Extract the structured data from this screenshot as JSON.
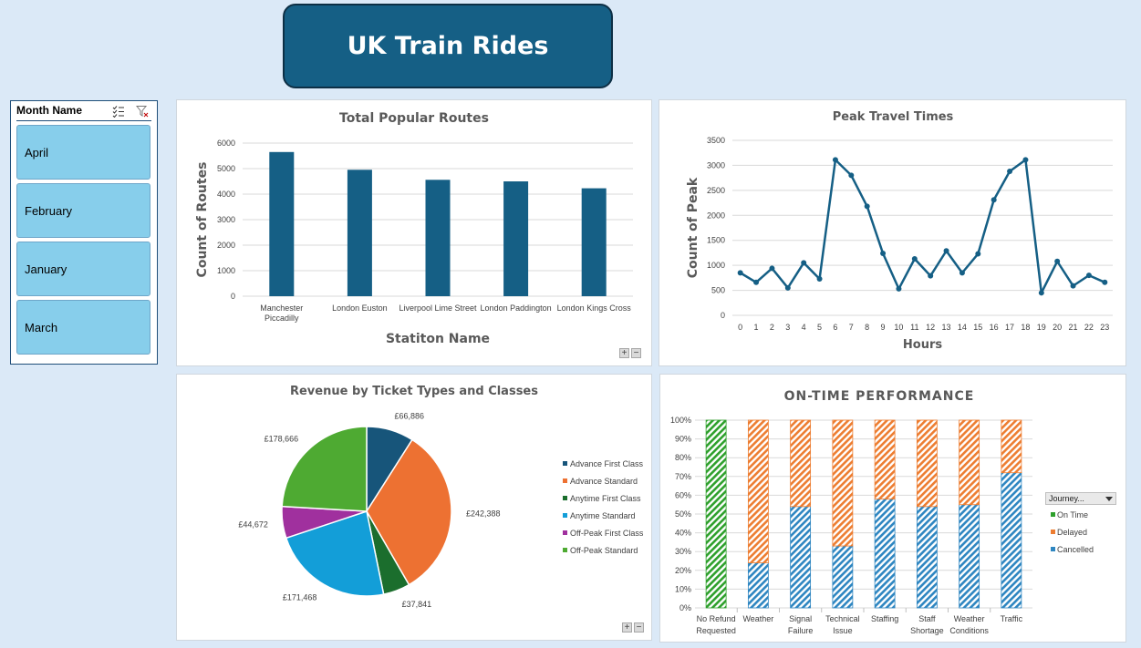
{
  "header": {
    "title": "UK Train Rides"
  },
  "slicer": {
    "title": "Month Name",
    "items": [
      "April",
      "February",
      "January",
      "March"
    ]
  },
  "colors": {
    "navy": "#155f85",
    "bg": "#dbe9f7",
    "slicer_item": "#87ceeb",
    "green": "#2ea02c",
    "orange": "#ed7d31",
    "blue": "#2e86c1"
  },
  "icons": [
    "multi-select-icon",
    "clear-filter-icon"
  ],
  "chart_data": [
    {
      "type": "bar",
      "title": "Total Popular Routes",
      "xlabel": "Statiton Name",
      "ylabel": "Count of Routes",
      "categories": [
        [
          "Manchester",
          "Piccadilly"
        ],
        [
          "London Euston"
        ],
        [
          "Liverpool Lime Street"
        ],
        [
          "London Paddington"
        ],
        [
          "London Kings Cross"
        ]
      ],
      "values": [
        5650,
        4954,
        4561,
        4500,
        4229
      ],
      "ylim": [
        0,
        6000
      ],
      "yticks": [
        0,
        1000,
        2000,
        3000,
        4000,
        5000,
        6000
      ],
      "grid": true
    },
    {
      "type": "line",
      "title": "Peak Travel Times",
      "xlabel": "Hours",
      "ylabel": "Count of Peak",
      "x": [
        0,
        1,
        2,
        3,
        4,
        5,
        6,
        7,
        8,
        9,
        10,
        11,
        12,
        13,
        14,
        15,
        16,
        17,
        18,
        19,
        20,
        21,
        22,
        23
      ],
      "values": [
        850,
        660,
        940,
        550,
        1050,
        730,
        3110,
        2800,
        2180,
        1240,
        530,
        1130,
        790,
        1290,
        850,
        1230,
        2310,
        2880,
        3110,
        450,
        1080,
        590,
        800,
        660
      ],
      "ylim": [
        0,
        3500
      ],
      "yticks": [
        0,
        500,
        1000,
        1500,
        2000,
        2500,
        3000,
        3500
      ],
      "grid": true
    },
    {
      "type": "pie",
      "title": "Revenue by Ticket Types and Classes",
      "labels": [
        "Advance First Class",
        "Advance Standard",
        "Anytime First Class",
        "Anytime Standard",
        "Off-Peak First Class",
        "Off-Peak Standard"
      ],
      "values": [
        66886,
        242388,
        37841,
        171468,
        44672,
        178666
      ],
      "data_labels": [
        "£66,886",
        "£242,388",
        "£37,841",
        "£171,468",
        "£44,672",
        "£178,666"
      ],
      "colors": [
        "#17557a",
        "#ed7132",
        "#1b6e2d",
        "#139ed8",
        "#a0309e",
        "#4eaa32"
      ],
      "legend": "right"
    },
    {
      "type": "bar",
      "stacked": true,
      "title": "ON-TIME PERFORMANCE",
      "categories": [
        [
          "No Refund",
          "Requested"
        ],
        [
          "Weather"
        ],
        [
          "Signal",
          "Failure"
        ],
        [
          "Technical",
          "Issue"
        ],
        [
          "Staffing"
        ],
        [
          "Staff",
          "Shortage"
        ],
        [
          "Weather",
          "Conditions"
        ],
        [
          "Traffic"
        ]
      ],
      "series": [
        {
          "name": "On Time",
          "values": [
            100,
            0,
            0,
            0,
            0,
            0,
            0,
            0
          ]
        },
        {
          "name": "Delayed",
          "values": [
            0,
            76,
            46,
            67,
            42,
            46,
            45,
            28
          ]
        },
        {
          "name": "Cancelled",
          "values": [
            0,
            24,
            54,
            33,
            58,
            54,
            55,
            72
          ]
        }
      ],
      "colors": [
        "#2ea02c",
        "#ed7d31",
        "#2e86c1"
      ],
      "yticks": [
        "0%",
        "10%",
        "20%",
        "30%",
        "40%",
        "50%",
        "60%",
        "70%",
        "80%",
        "90%",
        "100%"
      ],
      "ylim": [
        0,
        100
      ],
      "legend_filter": "Journey..."
    }
  ]
}
